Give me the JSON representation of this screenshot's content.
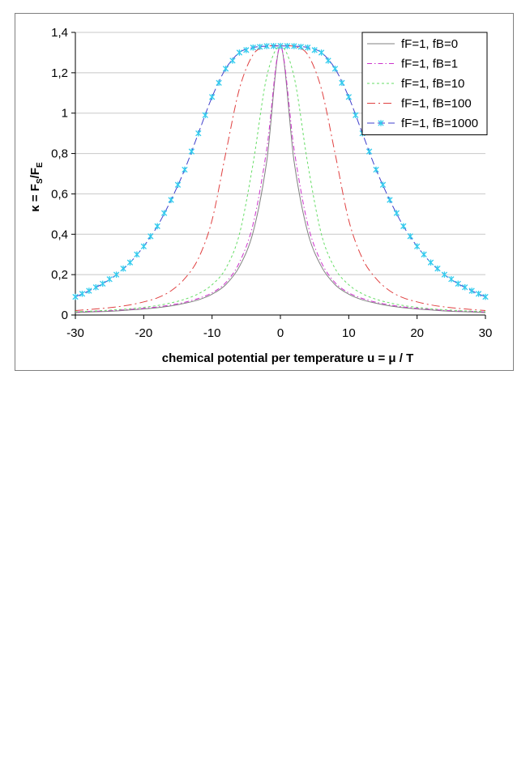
{
  "chart_data": {
    "type": "line",
    "title": "",
    "xlabel": "chemical potential per temperature u = μ / T",
    "ylabel_parts": {
      "main": "κ = F",
      "sub1": "S",
      "mid": "/F",
      "sub2": "E"
    },
    "xlim": [
      -30,
      30
    ],
    "ylim": [
      0,
      1.4
    ],
    "xticks": [
      -30,
      -20,
      -10,
      0,
      10,
      20,
      30
    ],
    "xtick_labels": [
      "-30",
      "-20",
      "-10",
      "0",
      "10",
      "20",
      "30"
    ],
    "yticks": [
      0,
      0.2,
      0.4,
      0.6,
      0.8,
      1,
      1.2,
      1.4
    ],
    "ytick_labels": [
      "0",
      "0,2",
      "0,4",
      "0,6",
      "0,8",
      "1",
      "1,2",
      "1,4"
    ],
    "grid": "horizontal",
    "legend_position": "top-right",
    "x": [
      -30,
      -28,
      -26,
      -24,
      -22,
      -20,
      -18,
      -16,
      -14,
      -12,
      -10,
      -8,
      -6,
      -4,
      -2,
      0,
      2,
      4,
      6,
      8,
      10,
      12,
      14,
      16,
      18,
      20,
      22,
      24,
      26,
      28,
      30
    ],
    "series": [
      {
        "name": "fF=1, fB=0",
        "color": "#808080",
        "dash": "solid",
        "values": [
          0.012,
          0.015,
          0.017,
          0.02,
          0.025,
          0.03,
          0.036,
          0.045,
          0.058,
          0.075,
          0.103,
          0.15,
          0.24,
          0.41,
          0.76,
          1.333,
          0.76,
          0.41,
          0.24,
          0.15,
          0.103,
          0.075,
          0.058,
          0.045,
          0.036,
          0.03,
          0.025,
          0.02,
          0.017,
          0.015,
          0.012
        ]
      },
      {
        "name": "fF=1, fB=1",
        "color": "#cc33cc",
        "dash": "dashdot",
        "values": [
          0.015,
          0.018,
          0.02,
          0.023,
          0.028,
          0.033,
          0.04,
          0.05,
          0.063,
          0.082,
          0.11,
          0.16,
          0.26,
          0.45,
          0.82,
          1.333,
          0.82,
          0.45,
          0.26,
          0.16,
          0.11,
          0.082,
          0.063,
          0.05,
          0.04,
          0.033,
          0.028,
          0.023,
          0.02,
          0.018,
          0.015
        ]
      },
      {
        "name": "fF=1, fB=10",
        "color": "#66dd66",
        "dash": "dashed",
        "values": [
          0.016,
          0.019,
          0.022,
          0.026,
          0.031,
          0.038,
          0.047,
          0.06,
          0.078,
          0.105,
          0.15,
          0.23,
          0.4,
          0.75,
          1.18,
          1.333,
          1.18,
          0.75,
          0.4,
          0.23,
          0.15,
          0.105,
          0.078,
          0.06,
          0.047,
          0.038,
          0.031,
          0.026,
          0.022,
          0.019,
          0.016
        ]
      },
      {
        "name": "fF=1, fB=100",
        "color": "#e04040",
        "dash": "longdashdot",
        "values": [
          0.022,
          0.027,
          0.033,
          0.04,
          0.05,
          0.065,
          0.085,
          0.12,
          0.18,
          0.28,
          0.47,
          0.8,
          1.12,
          1.29,
          1.33,
          1.333,
          1.33,
          1.29,
          1.12,
          0.8,
          0.47,
          0.28,
          0.18,
          0.12,
          0.085,
          0.065,
          0.05,
          0.04,
          0.033,
          0.027,
          0.022
        ]
      },
      {
        "name": "fF=1, fB=1000",
        "color": "#4040cc",
        "dash": "longdash",
        "marker": "star",
        "marker_color": "#33ccee",
        "values": [
          0.09,
          0.12,
          0.155,
          0.2,
          0.26,
          0.34,
          0.44,
          0.57,
          0.72,
          0.9,
          1.08,
          1.22,
          1.3,
          1.325,
          1.332,
          1.333,
          1.332,
          1.325,
          1.3,
          1.22,
          1.08,
          0.9,
          0.72,
          0.57,
          0.44,
          0.34,
          0.26,
          0.2,
          0.155,
          0.12,
          0.09
        ]
      }
    ]
  }
}
